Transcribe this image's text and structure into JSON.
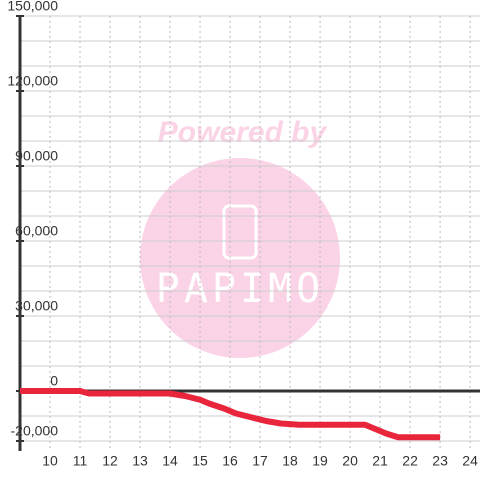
{
  "chart_data": {
    "type": "line",
    "watermark": {
      "title": "Powered by",
      "logo": "PAPIMO"
    },
    "x": [
      9,
      11,
      11.3,
      14,
      14.5,
      15,
      15.3,
      15.8,
      16.2,
      16.7,
      17.2,
      17.7,
      18.3,
      20.5,
      20.8,
      21.2,
      21.6,
      23
    ],
    "series": [
      {
        "color": "#e8253a",
        "values": [
          0,
          0,
          -1000,
          -1000,
          -2000,
          -3500,
          -5000,
          -7000,
          -9000,
          -10500,
          -12000,
          -13000,
          -13500,
          -13500,
          -15000,
          -17000,
          -18500,
          -18500
        ]
      }
    ],
    "xlim": [
      9,
      24.33
    ],
    "xticks": [
      10,
      11,
      12,
      13,
      14,
      15,
      16,
      17,
      18,
      19,
      20,
      21,
      22,
      23,
      24
    ],
    "ylim": [
      -24000,
      150000
    ],
    "yticks": [
      {
        "value": -20000,
        "label": "-20,000"
      },
      0,
      {
        "value": 30000,
        "label": "30,000"
      },
      {
        "value": 60000,
        "label": "60,000"
      },
      {
        "value": 90000,
        "label": "90,000"
      },
      {
        "value": 120000,
        "label": "120,000"
      },
      {
        "value": 150000,
        "label": "150,000"
      }
    ],
    "minor_yticks": [
      -10000,
      10000,
      20000,
      40000,
      50000,
      70000,
      80000,
      100000,
      110000,
      130000,
      140000
    ],
    "grid": true
  }
}
